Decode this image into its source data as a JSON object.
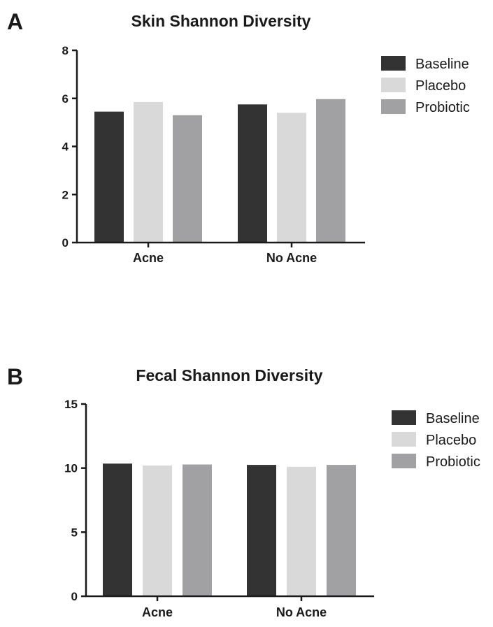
{
  "chart_data": [
    {
      "panel": "A",
      "type": "bar",
      "title": "Skin Shannon Diversity",
      "categories": [
        "Acne",
        "No Acne"
      ],
      "series": [
        {
          "name": "Baseline",
          "color": "#333333",
          "values": [
            5.45,
            5.75
          ]
        },
        {
          "name": "Placebo",
          "color": "#d9d9d9",
          "values": [
            5.85,
            5.4
          ]
        },
        {
          "name": "Probiotic",
          "color": "#a1a1a4",
          "values": [
            5.3,
            5.97
          ]
        }
      ],
      "yticks": [
        "0",
        "2",
        "4",
        "6",
        "8"
      ],
      "ylim": [
        0,
        8
      ],
      "xlabel": "",
      "ylabel": "",
      "legend_position": "top-right"
    },
    {
      "panel": "B",
      "type": "bar",
      "title": "Fecal Shannon Diversity",
      "categories": [
        "Acne",
        "No Acne"
      ],
      "series": [
        {
          "name": "Baseline",
          "color": "#333333",
          "values": [
            10.35,
            10.25
          ]
        },
        {
          "name": "Placebo",
          "color": "#d9d9d9",
          "values": [
            10.2,
            10.1
          ]
        },
        {
          "name": "Probiotic",
          "color": "#a1a1a4",
          "values": [
            10.28,
            10.25
          ]
        }
      ],
      "yticks": [
        "0",
        "5",
        "10",
        "15"
      ],
      "ylim": [
        0,
        15
      ],
      "xlabel": "",
      "ylabel": "",
      "legend_position": "top-right"
    }
  ]
}
